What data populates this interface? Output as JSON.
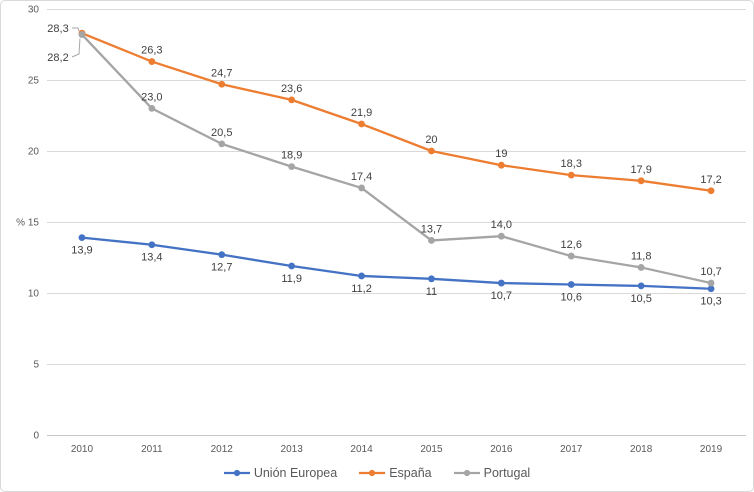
{
  "chart": {
    "background": "#FFFFFF",
    "border_color": "#D9D9D9"
  },
  "chart_data": {
    "type": "line",
    "title": "",
    "xlabel": "",
    "ylabel": "%",
    "categories": [
      "2010",
      "2011",
      "2012",
      "2013",
      "2014",
      "2015",
      "2016",
      "2017",
      "2018",
      "2019"
    ],
    "ylim": [
      0,
      30
    ],
    "yticks": [
      "0",
      "5",
      "10",
      "15",
      "20",
      "25",
      "30"
    ],
    "grid": true,
    "legend_position": "bottom",
    "series": [
      {
        "name": "Unión Europea",
        "color": "#4472C4",
        "values": [
          13.9,
          13.4,
          12.7,
          11.9,
          11.2,
          11,
          10.7,
          10.6,
          10.5,
          10.3
        ],
        "labels": [
          "13,9",
          "13,4",
          "12,7",
          "11,9",
          "11,2",
          "11",
          "10,7",
          "10,6",
          "10,5",
          "10,3"
        ],
        "label_position": "below"
      },
      {
        "name": "España",
        "color": "#ED7D31",
        "values": [
          28.3,
          26.3,
          24.7,
          23.6,
          21.9,
          20,
          19,
          18.3,
          17.9,
          17.2
        ],
        "labels": [
          "28,3",
          "26,3",
          "24,7",
          "23,6",
          "21,9",
          "20",
          "19",
          "18,3",
          "17,9",
          "17,2"
        ],
        "label_position": "above"
      },
      {
        "name": "Portugal",
        "color": "#A5A5A5",
        "values": [
          28.2,
          23,
          20.5,
          18.9,
          17.4,
          13.7,
          14,
          12.6,
          11.8,
          10.7
        ],
        "labels": [
          "28,2",
          "23,0",
          "20,5",
          "18,9",
          "17,4",
          "13,7",
          "14,0",
          "12,6",
          "11,8",
          "10,7"
        ],
        "label_position": "above"
      }
    ],
    "callouts": [
      {
        "series": 1,
        "index": 0,
        "placement": "left-above"
      },
      {
        "series": 2,
        "index": 0,
        "placement": "left-below"
      }
    ],
    "colors": {
      "grid": "#D9D9D9",
      "axis": "#C6C6C6",
      "tick_label": "#595959",
      "data_label": "#404040",
      "legend_label": "#595959",
      "leader": "#A6A6A6"
    }
  }
}
